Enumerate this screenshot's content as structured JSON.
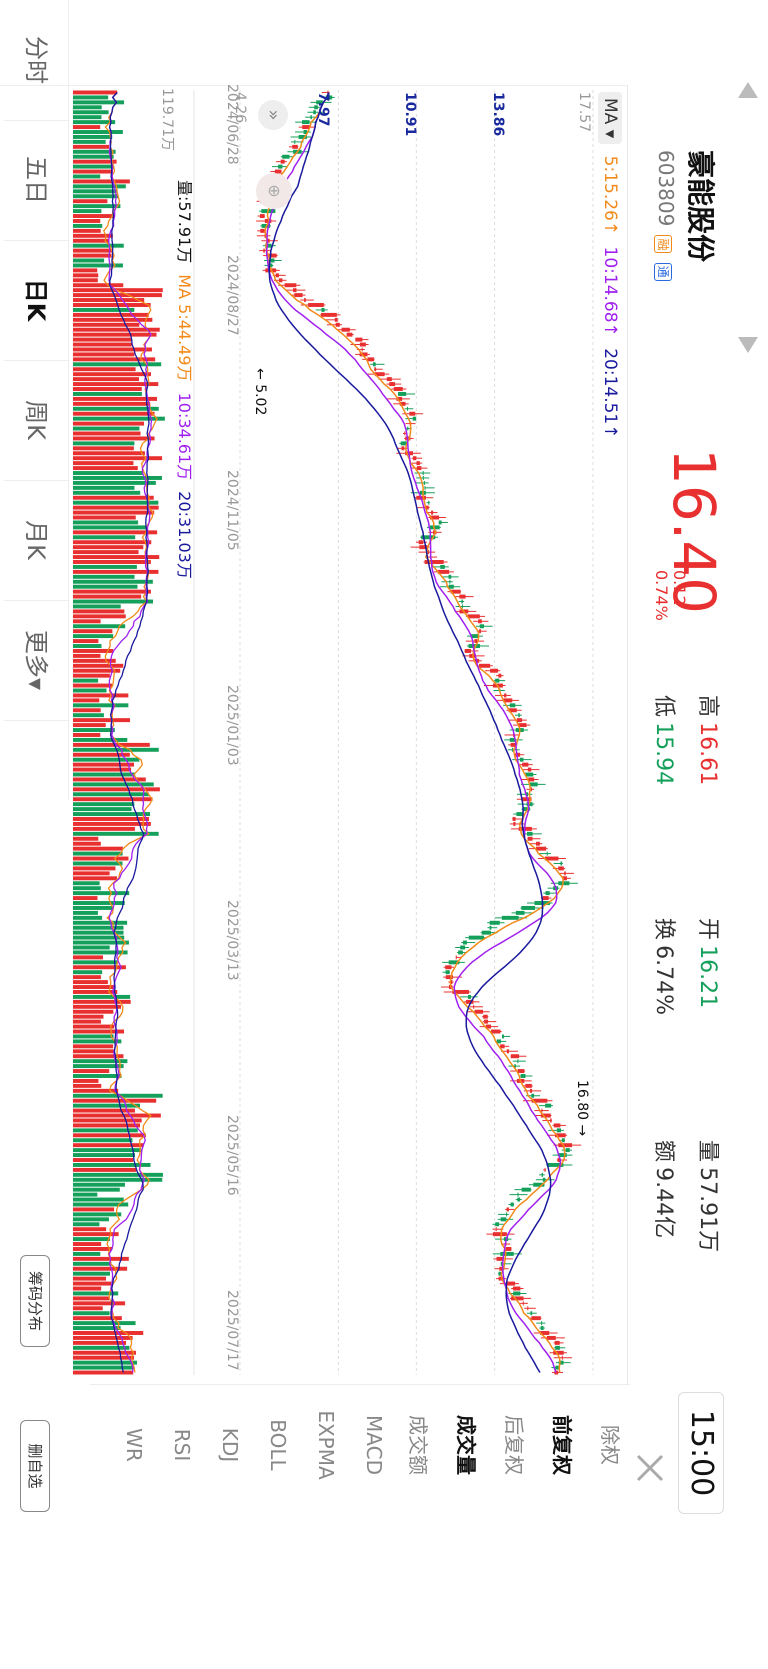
{
  "header": {
    "name": "豪能股份",
    "code": "603809",
    "badge_rong": "融",
    "badge_tong": "通",
    "price": "16.40",
    "change": "0.12",
    "change_pct": "0.74%",
    "high_label": "高",
    "high": "16.61",
    "low_label": "低",
    "low": "15.94",
    "open_label": "开",
    "open": "16.21",
    "turnover_label": "换",
    "turnover": "6.74%",
    "volume_label": "量",
    "volume": "57.91万",
    "amount_label": "额",
    "amount": "9.44亿",
    "time": "15:00",
    "close_icon": "close-icon",
    "prev_arrow": "triangle-left-icon",
    "next_arrow": "triangle-right-icon"
  },
  "ma_legend": {
    "selector": "MA",
    "ma5": "5:15.26↑",
    "ma10": "10:14.68↑",
    "ma20": "20:14.51↑"
  },
  "vol_legend": {
    "vol": "量:57.91万",
    "ma5": "MA 5:44.49万",
    "ma10": "10:34.61万",
    "ma20": "20:31.03万",
    "vol_max": "119.71万"
  },
  "price_axis": [
    "17.57",
    "13.86",
    "10.91",
    "7.97",
    "4.26"
  ],
  "dates": [
    "2024/06/28",
    "2024/08/27",
    "2024/11/05",
    "2025/01/03",
    "2025/03/13",
    "2025/05/16",
    "2025/07/17"
  ],
  "annotations": {
    "high_marker": "16.80",
    "low_marker": "5.02"
  },
  "side_menu": [
    "除权",
    "前复权",
    "后复权",
    "成交量",
    "成交额",
    "MACD",
    "EXPMA",
    "BOLL",
    "KDJ",
    "RSI",
    "WR"
  ],
  "side_active": [
    "前复权",
    "成交量"
  ],
  "tabs": [
    "分时",
    "五日",
    "日K",
    "周K",
    "月K",
    "更多▾"
  ],
  "active_tab": "日K",
  "buttons": {
    "chips": "筹码分布",
    "delete_self": "删自选"
  },
  "colors": {
    "up": "#e93030",
    "down": "#14a05a",
    "ma5": "#f28a1a",
    "ma10": "#a020f0",
    "ma20": "#1a1a9e"
  },
  "chart_data": {
    "type": "candlestick",
    "price_range": [
      4.26,
      17.57
    ],
    "labelled_prices": [
      17.57,
      13.86,
      10.91,
      7.97,
      4.26
    ],
    "high": 16.8,
    "low": 5.02,
    "close": 16.4,
    "x_dates": [
      "2024/06/28",
      "2024/08/27",
      "2024/11/05",
      "2025/01/03",
      "2025/03/13",
      "2025/05/16",
      "2025/07/17"
    ],
    "close_trend": [
      7.6,
      6.9,
      6.4,
      5.8,
      5.4,
      5.2,
      5.3,
      5.5,
      6.6,
      7.9,
      8.9,
      9.6,
      10.3,
      10.8,
      10.5,
      10.9,
      11.3,
      11.7,
      11.2,
      11.9,
      12.5,
      13.3,
      13.0,
      13.8,
      14.4,
      15.0,
      14.6,
      15.3,
      15.1,
      14.7,
      15.8,
      16.6,
      15.9,
      13.8,
      12.5,
      11.9,
      12.8,
      13.6,
      14.3,
      14.9,
      15.5,
      16.2,
      16.6,
      15.8,
      14.8,
      14.1,
      14.3,
      14.2,
      14.9,
      15.6,
      16.2,
      16.4
    ],
    "volume_max": "119.71万"
  }
}
